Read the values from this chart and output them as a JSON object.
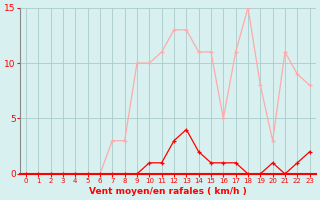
{
  "hours": [
    0,
    1,
    2,
    3,
    4,
    5,
    6,
    7,
    8,
    9,
    10,
    11,
    12,
    13,
    14,
    15,
    16,
    17,
    18,
    19,
    20,
    21,
    22,
    23
  ],
  "wind_avg": [
    0,
    0,
    0,
    0,
    0,
    0,
    0,
    0,
    0,
    0,
    1,
    1,
    3,
    4,
    2,
    1,
    1,
    1,
    0,
    0,
    1,
    0,
    1,
    2
  ],
  "wind_gust": [
    0,
    0,
    0,
    0,
    0,
    0,
    0,
    3,
    3,
    10,
    10,
    11,
    13,
    13,
    11,
    11,
    5,
    11,
    15,
    8,
    3,
    11,
    9,
    8
  ],
  "avg_color": "#ff0000",
  "gust_color": "#ffaaaa",
  "bg_color": "#d8f0f0",
  "grid_color": "#aacccc",
  "axis_color": "#ff0000",
  "text_color": "#ff0000",
  "xlabel": "Vent moyen/en rafales ( km/h )",
  "ylim": [
    0,
    15
  ],
  "xlim_min": -0.5,
  "xlim_max": 23.5,
  "yticks": [
    0,
    5,
    10,
    15
  ],
  "xticks": [
    0,
    1,
    2,
    3,
    4,
    5,
    6,
    7,
    8,
    9,
    10,
    11,
    12,
    13,
    14,
    15,
    16,
    17,
    18,
    19,
    20,
    21,
    22,
    23
  ]
}
